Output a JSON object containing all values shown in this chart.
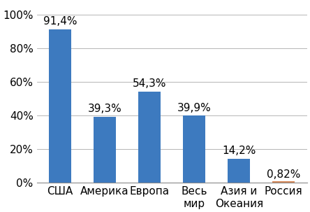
{
  "categories": [
    "США",
    "Америка",
    "Европа",
    "Весь\nмир",
    "Азия и\nОкеания",
    "Россия"
  ],
  "values": [
    91.4,
    39.3,
    54.3,
    39.9,
    14.2,
    0.82
  ],
  "labels": [
    "91,4%",
    "39,3%",
    "54,3%",
    "39,9%",
    "14,2%",
    "0,82%"
  ],
  "bar_colors": [
    "#3d7abf",
    "#3d7abf",
    "#3d7abf",
    "#3d7abf",
    "#3d7abf",
    "#d4895a"
  ],
  "ylim": [
    0,
    107
  ],
  "yticks": [
    0,
    20,
    40,
    60,
    80,
    100
  ],
  "ytick_labels": [
    "0%",
    "20%",
    "40%",
    "60%",
    "80%",
    "100%"
  ],
  "background_color": "#ffffff",
  "grid_color": "#aaaaaa",
  "label_fontsize": 11,
  "tick_fontsize": 11,
  "bar_width": 0.5
}
